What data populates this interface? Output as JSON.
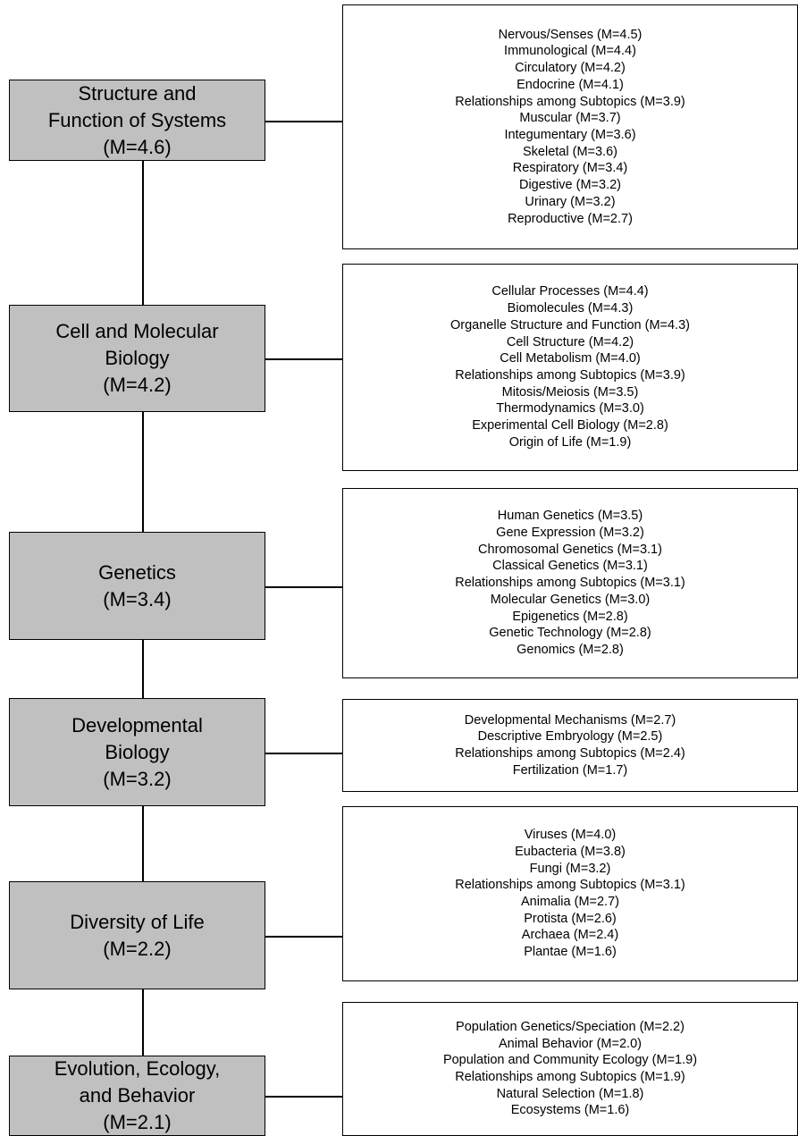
{
  "categories": [
    {
      "lines": [
        "Structure and",
        "Function of Systems",
        "(M=4.6)"
      ],
      "subtopics": [
        "Nervous/Senses (M=4.5)",
        "Immunological (M=4.4)",
        "Circulatory (M=4.2)",
        "Endocrine (M=4.1)",
        "Relationships among Subtopics (M=3.9)",
        "Muscular (M=3.7)",
        "Integumentary (M=3.6)",
        "Skeletal (M=3.6)",
        "Respiratory (M=3.4)",
        "Digestive (M=3.2)",
        "Urinary (M=3.2)",
        "Reproductive (M=2.7)"
      ]
    },
    {
      "lines": [
        "Cell and Molecular",
        "Biology",
        "(M=4.2)"
      ],
      "subtopics": [
        "Cellular Processes (M=4.4)",
        "Biomolecules (M=4.3)",
        "Organelle Structure and Function (M=4.3)",
        "Cell Structure (M=4.2)",
        "Cell Metabolism (M=4.0)",
        "Relationships among Subtopics (M=3.9)",
        "Mitosis/Meiosis (M=3.5)",
        "Thermodynamics (M=3.0)",
        "Experimental Cell Biology (M=2.8)",
        "Origin of Life (M=1.9)"
      ]
    },
    {
      "lines": [
        "Genetics",
        "(M=3.4)"
      ],
      "subtopics": [
        "Human Genetics (M=3.5)",
        "Gene Expression (M=3.2)",
        "Chromosomal Genetics (M=3.1)",
        "Classical Genetics (M=3.1)",
        "Relationships among Subtopics (M=3.1)",
        "Molecular Genetics (M=3.0)",
        "Epigenetics (M=2.8)",
        "Genetic Technology (M=2.8)",
        "Genomics (M=2.8)"
      ]
    },
    {
      "lines": [
        "Developmental",
        "Biology",
        "(M=3.2)"
      ],
      "subtopics": [
        "Developmental Mechanisms (M=2.7)",
        "Descriptive Embryology (M=2.5)",
        "Relationships among Subtopics (M=2.4)",
        "Fertilization (M=1.7)"
      ]
    },
    {
      "lines": [
        "Diversity of Life",
        "(M=2.2)"
      ],
      "subtopics": [
        "Viruses (M=4.0)",
        "Eubacteria (M=3.8)",
        "Fungi (M=3.2)",
        "Relationships among Subtopics (M=3.1)",
        "Animalia (M=2.7)",
        "Protista (M=2.6)",
        "Archaea (M=2.4)",
        "Plantae (M=1.6)"
      ]
    },
    {
      "lines": [
        "Evolution, Ecology,",
        "and Behavior",
        "(M=2.1)"
      ],
      "subtopics": [
        "Population Genetics/Speciation (M=2.2)",
        "Animal Behavior (M=2.0)",
        "Population and Community Ecology (M=1.9)",
        "Relationships among Subtopics (M=1.9)",
        "Natural Selection (M=1.8)",
        "Ecosystems (M=1.6)"
      ]
    }
  ]
}
